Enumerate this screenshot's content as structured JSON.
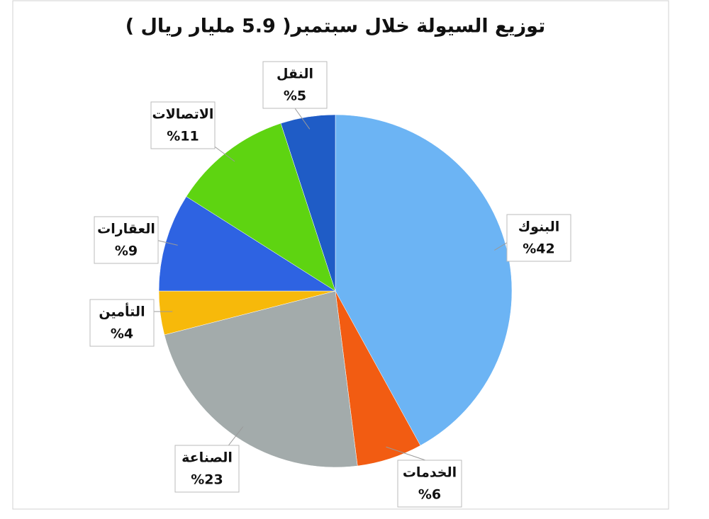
{
  "chart_data": {
    "type": "pie",
    "title": "توزيع السيولة خلال سبتمبر( 5.9 مليار ريال )",
    "categories": [
      "البنوك",
      "الخدمات",
      "الصناعة",
      "التأمين",
      "العقارات",
      "الاتصالات",
      "النقل"
    ],
    "values": [
      42,
      6,
      23,
      4,
      9,
      11,
      5
    ],
    "value_labels": [
      "%42",
      "%6",
      "%23",
      "%4",
      "%9",
      "%11",
      "%5"
    ],
    "colors": [
      "#6cb4f4",
      "#f25c12",
      "#a3abab",
      "#f7b90a",
      "#2e63e2",
      "#5ed411",
      "#1f5cc6"
    ]
  }
}
